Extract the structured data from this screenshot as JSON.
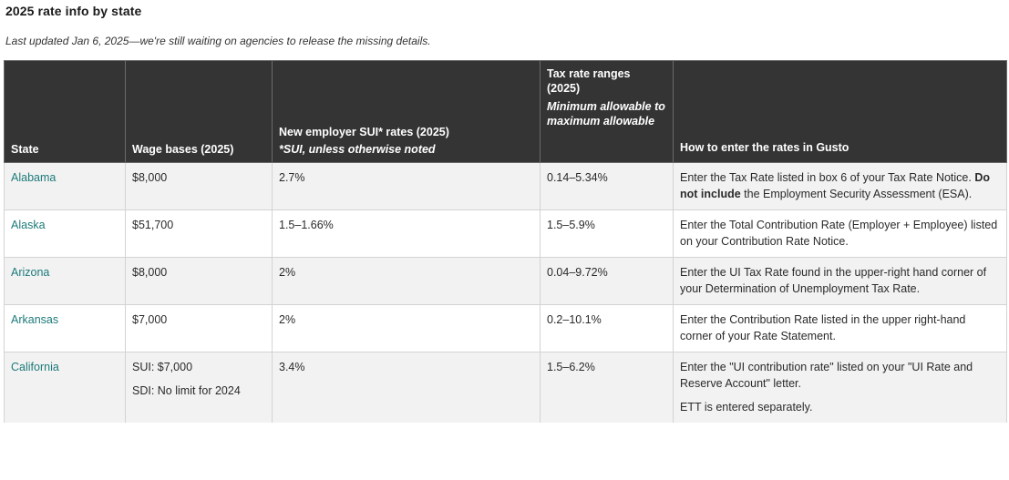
{
  "heading": "2025 rate info by state",
  "updated_note": "Last updated Jan 6, 2025—we're still waiting on agencies to release the missing details.",
  "table": {
    "headers": {
      "state": "State",
      "wage_bases": "Wage bases (2025)",
      "sui_rates": "New employer SUI* rates (2025)",
      "sui_note": "*SUI, unless otherwise noted",
      "tax_ranges": "Tax rate ranges (2025)",
      "tax_ranges_note": "Minimum allowable to maximum allowable",
      "how_to": "How to enter the rates in Gusto"
    },
    "rows": [
      {
        "state": "Alabama",
        "wage": "$8,000",
        "sui": "2.7%",
        "range": "0.14–5.34%",
        "howto_before": "Enter the Tax Rate listed in box 6 of your Tax Rate Notice. ",
        "howto_bold": "Do not include",
        "howto_after": " the Employment Security Assessment (ESA)."
      },
      {
        "state": "Alaska",
        "wage": "$51,700",
        "sui": "1.5–1.66%",
        "range": "1.5–5.9%",
        "howto": "Enter the Total Contribution Rate (Employer + Employee) listed on your Contribution Rate Notice."
      },
      {
        "state": "Arizona",
        "wage": "$8,000",
        "sui": "2%",
        "range": "0.04–9.72%",
        "howto": "Enter the UI Tax Rate found in the upper-right hand corner of your Determination of Unemployment Tax Rate."
      },
      {
        "state": "Arkansas",
        "wage": "$7,000",
        "sui": "2%",
        "range": "0.2–10.1%",
        "howto": "Enter the Contribution Rate listed in the upper right-hand corner of your Rate Statement."
      },
      {
        "state": "California",
        "wage_1": "SUI: $7,000",
        "wage_2": "SDI: No limit for 2024",
        "sui": "3.4%",
        "range": "1.5–6.2%",
        "howto_1": "Enter the \"UI contribution rate\" listed on your \"UI Rate and Reserve Account\" letter.",
        "howto_2": "ETT is entered separately."
      }
    ]
  },
  "colors": {
    "header_bg": "#343434",
    "link": "#1d7a7a",
    "row_alt": "#f2f2f2"
  }
}
